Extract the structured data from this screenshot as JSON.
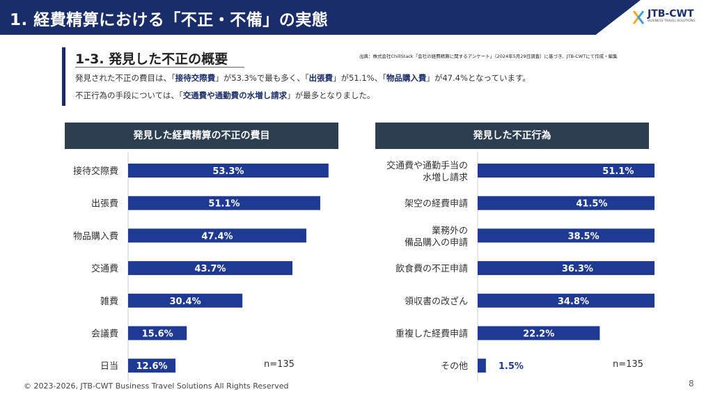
{
  "header": {
    "title": "1. 経費精算における「不正・不備」の実態",
    "logo_text": "JTB-CWT",
    "logo_sub": "BUSINESS TRAVEL SOLUTIONS"
  },
  "section": {
    "title": "1-3. 発見した不正の概要",
    "source": "出典：株式会社ChillStack「会社の経費精算に関するアンケート」（2024年5月29日調査）に基づき、JTB-CWTにて作成・編集",
    "desc1": {
      "p1": "発見された不正の費目は、「",
      "b1": "接待交際費",
      "p2": "」が53.3%で最も多く、「",
      "b2": "出張費",
      "p3": "」が51.1%、「",
      "b3": "物品購入費",
      "p4": "」が47.4%となっています。"
    },
    "desc2": {
      "p1": "不正行為の手段については、「",
      "b1": "交通費や通勤費の水増し請求",
      "p2": "」が最多となりました。"
    }
  },
  "colors": {
    "navy": "#1a2d6b",
    "bar": "#1f3a93",
    "dark_header": "#2c3e50"
  },
  "chart_data": [
    {
      "type": "bar",
      "orientation": "horizontal",
      "title": "発見した経費精算の不正の費目",
      "categories": [
        "接待交際費",
        "出張費",
        "物品購入費",
        "交通費",
        "雑費",
        "会議費",
        "日当"
      ],
      "values": [
        53.3,
        51.1,
        47.4,
        43.7,
        30.4,
        15.6,
        12.6
      ],
      "value_labels": [
        "53.3%",
        "51.1%",
        "47.4%",
        "43.7%",
        "30.4%",
        "15.6%",
        "12.6%"
      ],
      "n_label": "n=135"
    },
    {
      "type": "bar",
      "orientation": "horizontal",
      "title": "発見した不正行為",
      "categories": [
        "交通費や通勤手当の\n水増し請求",
        "架空の経費申請",
        "業務外の\n備品購入の申請",
        "飲食費の不正申請",
        "領収書の改ざん",
        "重複した経費申請",
        "その他"
      ],
      "values": [
        51.1,
        41.5,
        38.5,
        36.3,
        34.8,
        22.2,
        1.5
      ],
      "value_labels": [
        "51.1%",
        "41.5%",
        "38.5%",
        "36.3%",
        "34.8%",
        "22.2%",
        "1.5%"
      ],
      "n_label": "n=135"
    }
  ],
  "footer": {
    "copyright": "© 2023-2026, JTB-CWT Business Travel Solutions All Rights Reserved",
    "page": "8"
  }
}
